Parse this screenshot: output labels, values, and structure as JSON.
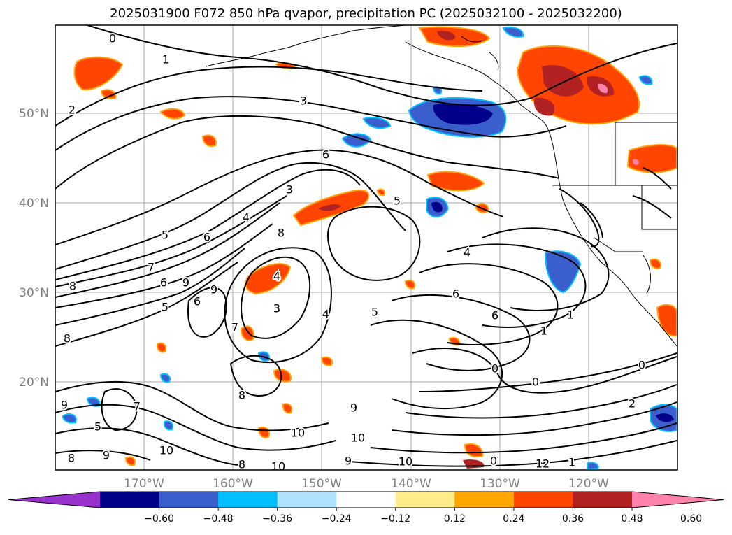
{
  "title": "2025031900 F072 850 hPa qvapor, precipitation PC (2025032100 - 2025032200)",
  "lat_ticks": [
    "50°N",
    "40°N",
    "30°N",
    "20°N"
  ],
  "lon_ticks": [
    "170°W",
    "160°W",
    "150°W",
    "140°W",
    "130°W",
    "120°W"
  ],
  "colorbar": {
    "labels": [
      "−0.60",
      "−0.48",
      "−0.36",
      "−0.24",
      "−0.12",
      "0.12",
      "0.24",
      "0.36",
      "0.48",
      "0.60"
    ],
    "colors": [
      "#9932cc",
      "#00008b",
      "#3a5fcd",
      "#00bfff",
      "#b0e2ff",
      "#ffffff",
      "#ffec8b",
      "#ffa500",
      "#ff4500",
      "#b22222",
      "#ff82ab"
    ]
  },
  "contour_labels": [
    "0",
    "1",
    "2",
    "3",
    "6",
    "3",
    "4",
    "5",
    "8",
    "5",
    "6",
    "7",
    "8",
    "6",
    "9",
    "8",
    "9",
    "7",
    "4",
    "3",
    "4",
    "6",
    "5",
    "4",
    "6",
    "1",
    "1",
    "0",
    "0",
    "0",
    "2",
    "8",
    "9",
    "10",
    "10",
    "10",
    "9",
    "10",
    "7",
    "8",
    "9",
    "8",
    "9",
    "10",
    "0",
    "12",
    "1",
    "6",
    "5",
    "5"
  ]
}
